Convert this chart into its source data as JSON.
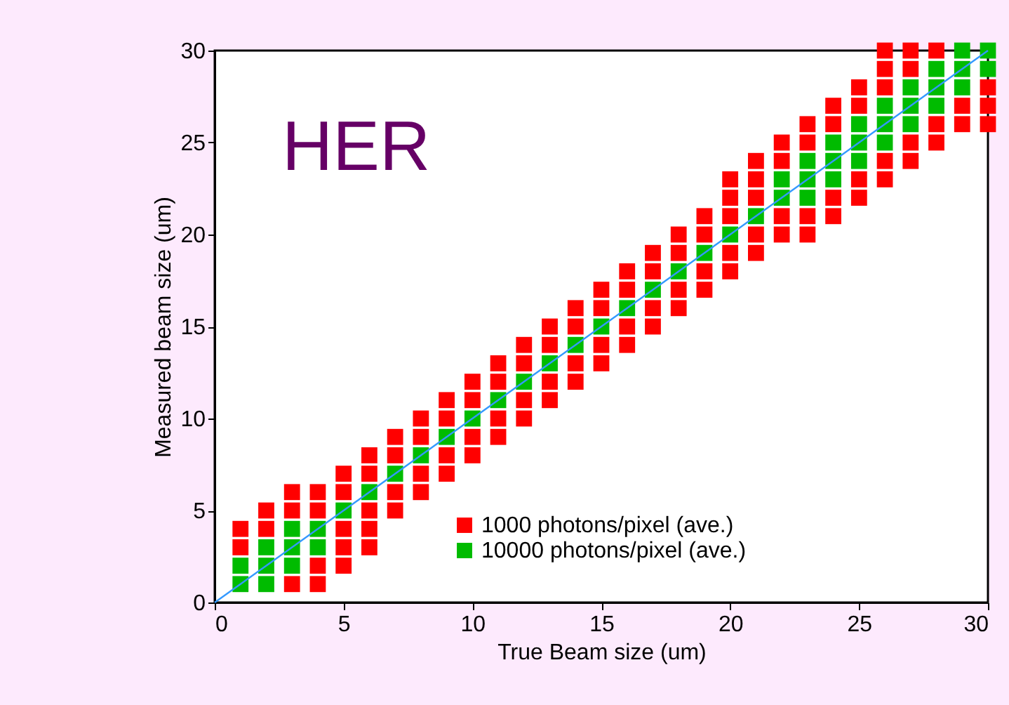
{
  "chart_data": {
    "type": "scatter",
    "xlabel": "True Beam size (um)",
    "ylabel": "Measured beam size (um)",
    "annotations": [
      "HER"
    ],
    "xlim": [
      0,
      30
    ],
    "ylim": [
      0,
      30
    ],
    "xticks": [
      0,
      5,
      10,
      15,
      20,
      25,
      30
    ],
    "yticks": [
      0,
      5,
      10,
      15,
      20,
      25,
      30
    ],
    "legend": "bottom right",
    "grid": false,
    "series": [
      {
        "name": "1000 photons/pixel (ave.)",
        "marker": "square",
        "color": "#ff0000",
        "x": [
          1,
          1,
          2,
          2,
          3,
          3,
          3,
          4,
          4,
          4,
          4,
          5,
          5,
          5,
          5,
          5,
          6,
          6,
          6,
          6,
          6,
          7,
          7,
          7,
          7,
          8,
          8,
          8,
          8,
          9,
          9,
          9,
          9,
          10,
          10,
          10,
          10,
          11,
          11,
          11,
          11,
          12,
          12,
          12,
          12,
          13,
          13,
          13,
          13,
          14,
          14,
          14,
          14,
          15,
          15,
          15,
          15,
          16,
          16,
          16,
          16,
          17,
          17,
          17,
          17,
          18,
          18,
          18,
          18,
          19,
          19,
          19,
          19,
          20,
          20,
          20,
          20,
          20,
          21,
          21,
          21,
          21,
          21,
          22,
          22,
          22,
          22,
          23,
          23,
          23,
          23,
          24,
          24,
          24,
          24,
          25,
          25,
          25,
          25,
          26,
          26,
          26,
          26,
          26,
          27,
          27,
          27,
          27,
          28,
          28,
          28,
          29,
          29,
          30,
          30,
          30
        ],
        "values": [
          3,
          4,
          4,
          5,
          1,
          5,
          6,
          1,
          2,
          5,
          6,
          2,
          3,
          4,
          6,
          7,
          3,
          4,
          5,
          7,
          8,
          5,
          6,
          8,
          9,
          6,
          7,
          9,
          10,
          7,
          8,
          10,
          11,
          8,
          9,
          11,
          12,
          9,
          10,
          12,
          13,
          10,
          11,
          13,
          14,
          11,
          12,
          14,
          15,
          12,
          13,
          15,
          16,
          13,
          14,
          16,
          17,
          14,
          15,
          17,
          18,
          15,
          16,
          18,
          19,
          16,
          17,
          19,
          20,
          17,
          18,
          20,
          21,
          18,
          19,
          21,
          22,
          23,
          19,
          20,
          22,
          23,
          24,
          20,
          21,
          24,
          25,
          20,
          21,
          25,
          26,
          21,
          22,
          26,
          27,
          22,
          23,
          27,
          28,
          23,
          24,
          28,
          29,
          30,
          24,
          25,
          29,
          30,
          25,
          26,
          30,
          26,
          27,
          26,
          27,
          28
        ]
      },
      {
        "name": "10000 photons/pixel (ave.)",
        "marker": "square",
        "color": "#00bb00",
        "x": [
          1,
          1,
          2,
          2,
          2,
          3,
          3,
          3,
          4,
          4,
          5,
          6,
          7,
          8,
          9,
          10,
          11,
          12,
          13,
          14,
          15,
          16,
          17,
          18,
          19,
          20,
          21,
          22,
          22,
          23,
          23,
          23,
          24,
          24,
          24,
          25,
          25,
          25,
          26,
          26,
          26,
          27,
          27,
          27,
          28,
          28,
          28,
          29,
          29,
          29,
          30,
          30
        ],
        "values": [
          1,
          2,
          1,
          2,
          3,
          2,
          3,
          4,
          3,
          4,
          5,
          6,
          7,
          8,
          9,
          10,
          11,
          12,
          13,
          14,
          15,
          16,
          17,
          18,
          19,
          20,
          21,
          22,
          23,
          22,
          23,
          24,
          23,
          24,
          25,
          24,
          25,
          26,
          25,
          26,
          27,
          26,
          27,
          28,
          27,
          28,
          29,
          28,
          29,
          30,
          29,
          30
        ]
      },
      {
        "type": "line",
        "marker": "none",
        "color": "#3399ff",
        "x": [
          0,
          30
        ],
        "values": [
          0,
          30
        ]
      }
    ]
  }
}
